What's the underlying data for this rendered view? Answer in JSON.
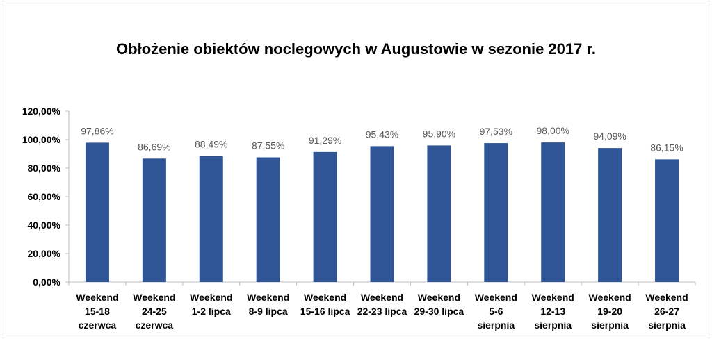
{
  "chart_data": {
    "type": "bar",
    "title": "Obłożenie obiektów noclegowych w Augustowie w sezonie 2017 r.",
    "xlabel": "",
    "ylabel": "",
    "ylim": [
      0,
      120
    ],
    "yticks": [
      "0,00%",
      "20,00%",
      "40,00%",
      "60,00%",
      "80,00%",
      "100,00%",
      "120,00%"
    ],
    "categories": [
      [
        "Weekend",
        "15-18",
        "czerwca"
      ],
      [
        "Weekend",
        "24-25",
        "czerwca"
      ],
      [
        "Weekend",
        "1-2 lipca"
      ],
      [
        "Weekend",
        "8-9 lipca"
      ],
      [
        "Weekend",
        "15-16 lipca"
      ],
      [
        "Weekend",
        "22-23 lipca"
      ],
      [
        "Weekend",
        "29-30 lipca"
      ],
      [
        "Weekend",
        "5-6",
        "sierpnia"
      ],
      [
        "Weekend",
        "12-13",
        "sierpnia"
      ],
      [
        "Weekend",
        "19-20",
        "sierpnia"
      ],
      [
        "Weekend",
        "26-27",
        "sierpnia"
      ]
    ],
    "values": [
      97.86,
      86.69,
      88.49,
      87.55,
      91.29,
      95.43,
      95.9,
      97.53,
      98.0,
      94.09,
      86.15
    ],
    "data_labels": [
      "97,86%",
      "86,69%",
      "88,49%",
      "87,55%",
      "91,29%",
      "95,43%",
      "95,90%",
      "97,53%",
      "98,00%",
      "94,09%",
      "86,15%"
    ],
    "bar_color": "#2f5597",
    "grid": false,
    "legend": "none"
  }
}
